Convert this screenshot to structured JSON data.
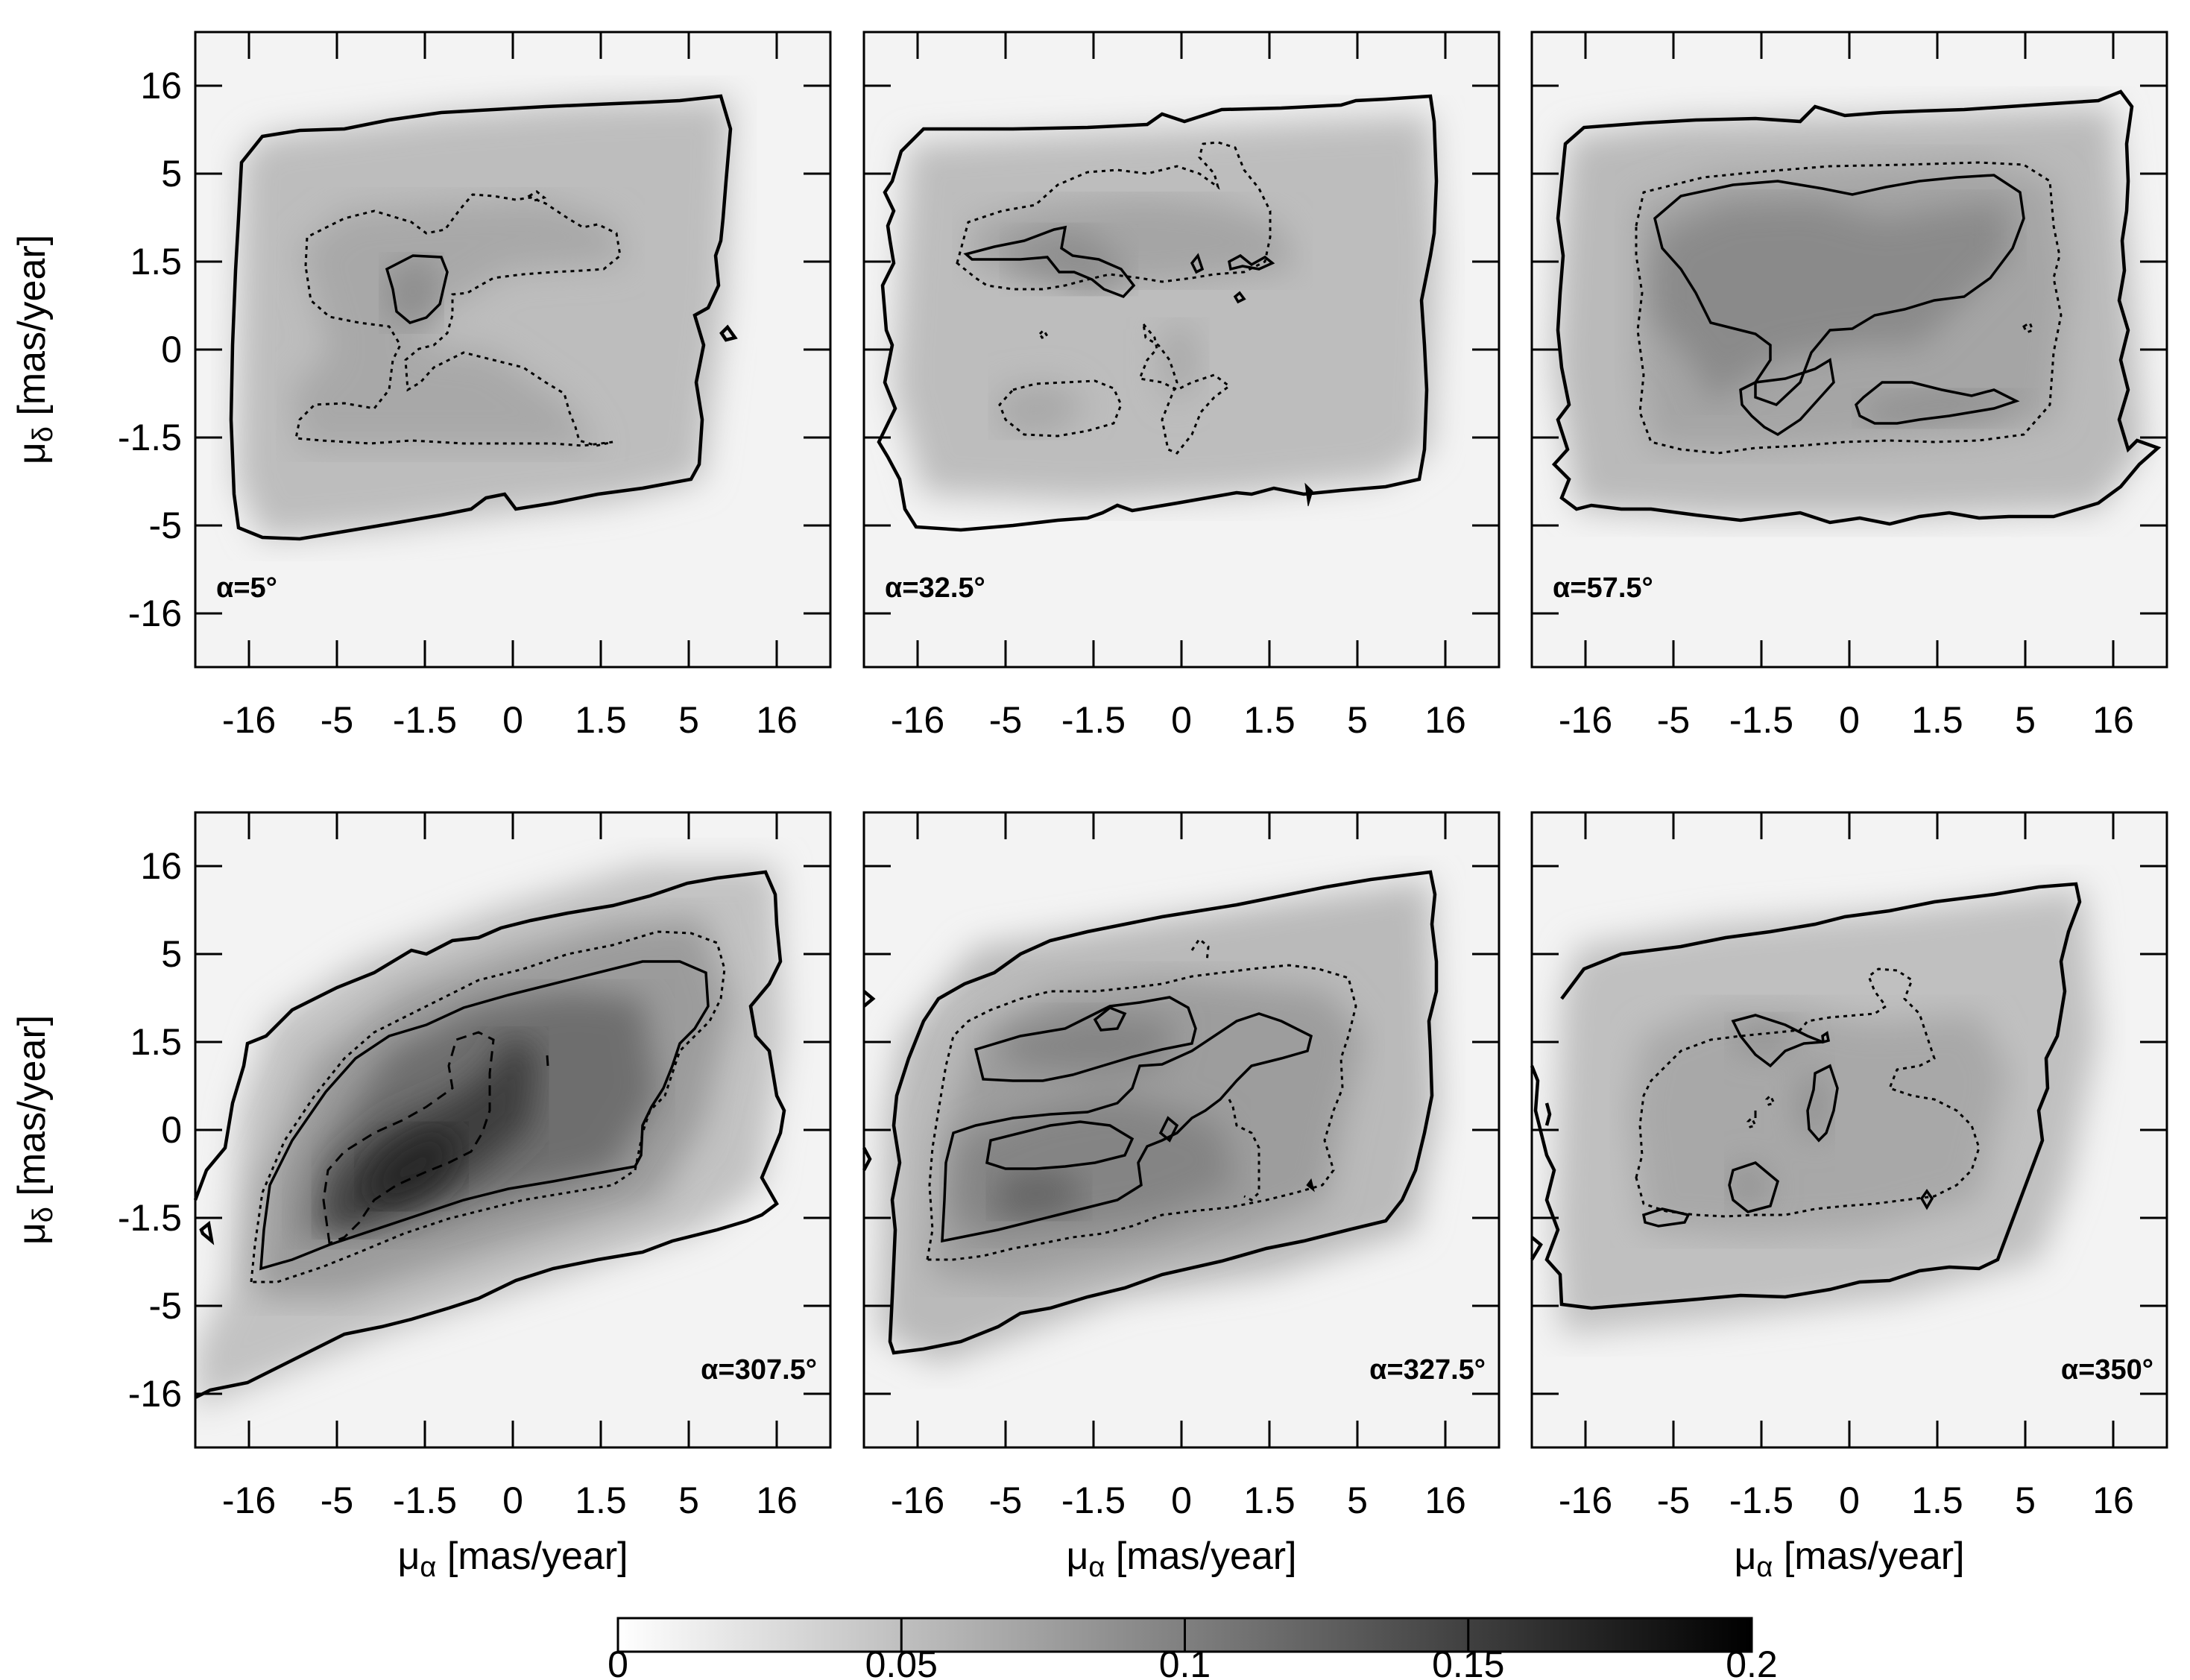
{
  "chart_data": {
    "type": "heatmap",
    "layout": "2x3 small multiples",
    "x_ticks": [
      "-16",
      "-5",
      "-1.5",
      "0",
      "1.5",
      "5",
      "16"
    ],
    "y_ticks": [
      "16",
      "5",
      "1.5",
      "0",
      "-1.5",
      "-5",
      "-16"
    ],
    "x_label_base": "μ",
    "x_label_sub": "α",
    "x_label_unit": " [mas/year]",
    "y_label_base": "μ",
    "y_label_sub": "δ",
    "y_label_unit": " [mas/year]",
    "panels": [
      {
        "label": "α=5°",
        "label_position": "bottom-left"
      },
      {
        "label": "α=32.5°",
        "label_position": "bottom-left"
      },
      {
        "label": "α=57.5°",
        "label_position": "bottom-left"
      },
      {
        "label": "α=307.5°",
        "label_position": "bottom-right"
      },
      {
        "label": "α=327.5°",
        "label_position": "bottom-right"
      },
      {
        "label": "α=350°",
        "label_position": "bottom-right"
      }
    ],
    "colorbar": {
      "min": 0,
      "max": 0.2,
      "ticks": [
        "0",
        "0.05",
        "0.1",
        "0.15",
        "0.2"
      ],
      "colormap": "white-to-black",
      "low_color": "#ffffff",
      "high_color": "#000000"
    },
    "contour_levels": [
      {
        "value": 0.025,
        "style": "solid-thick"
      },
      {
        "value": 0.05,
        "style": "dotted"
      },
      {
        "value": 0.075,
        "style": "solid-thin"
      },
      {
        "value": 0.125,
        "style": "dashed"
      }
    ]
  }
}
